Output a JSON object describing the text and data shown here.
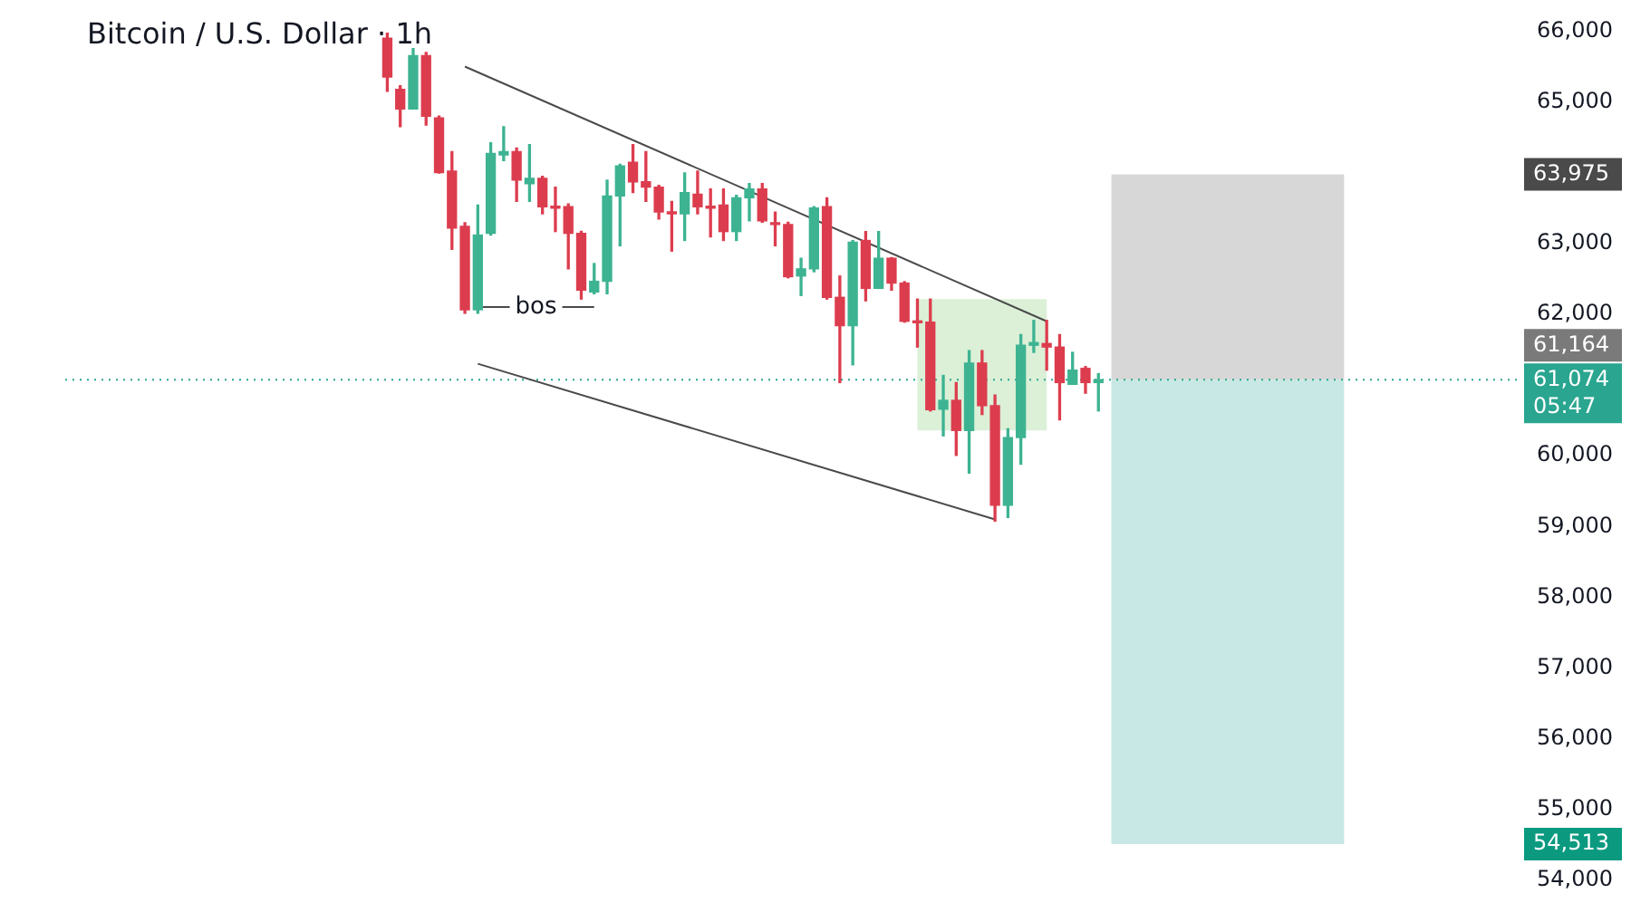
{
  "chart_data": {
    "type": "candlestick",
    "title": "Bitcoin / U.S. Dollar · 1h",
    "categories": [
      null,
      null,
      null,
      null,
      null,
      null,
      null,
      null,
      null,
      null,
      null,
      null,
      null,
      null,
      null,
      null,
      null,
      null,
      null,
      null,
      null,
      null,
      null,
      null,
      null,
      null,
      null,
      null,
      null,
      null,
      null,
      null,
      null,
      null,
      null,
      null,
      null,
      null,
      null,
      null,
      null,
      null,
      null,
      null,
      null,
      null,
      null,
      null,
      null,
      null,
      null,
      null,
      null,
      null,
      null,
      null,
      null,
      null,
      null,
      null,
      null,
      null,
      null,
      null,
      null,
      null,
      null,
      null,
      null,
      null,
      null,
      null,
      null,
      null,
      null,
      null,
      null,
      null,
      null,
      null,
      null,
      null,
      null,
      null,
      null,
      null,
      null,
      null,
      null,
      null,
      null,
      null,
      null,
      null,
      null,
      null,
      null,
      null,
      null,
      null,
      null,
      null,
      null,
      null
    ],
    "ohlc": [
      null,
      null,
      null,
      null,
      null,
      null,
      null,
      null,
      null,
      null,
      null,
      null,
      null,
      null,
      null,
      null,
      [
        65900,
        65970,
        65151,
        65352
      ],
      [
        65176,
        65230,
        64649,
        64900
      ],
      [
        64900,
        65753,
        64900,
        65653
      ],
      [
        65653,
        65700,
        64674,
        64799
      ],
      [
        64774,
        64800,
        63996,
        64000
      ],
      [
        64021,
        64297,
        62917,
        63218
      ],
      [
        63243,
        63293,
        62013,
        62063
      ],
      [
        62063,
        63544,
        62013,
        63118
      ],
      [
        63143,
        64423,
        63118,
        64272
      ],
      [
        64250,
        64649,
        64172,
        64297
      ],
      [
        64297,
        64350,
        63595,
        63896
      ],
      [
        63845,
        64398,
        63595,
        63921
      ],
      [
        63921,
        63950,
        63419,
        63519
      ],
      [
        63519,
        63795,
        63168,
        63500
      ],
      [
        63519,
        63560,
        62641,
        63143
      ],
      [
        63143,
        63170,
        62214,
        62339
      ],
      [
        62314,
        62716,
        62289,
        62465
      ],
      [
        62465,
        63896,
        62289,
        63670
      ],
      [
        63670,
        64120,
        62967,
        64096
      ],
      [
        64147,
        64398,
        63720,
        63871
      ],
      [
        63871,
        64297,
        63595,
        63795
      ],
      [
        63795,
        63820,
        63344,
        63444
      ],
      [
        63444,
        63595,
        62892,
        63420
      ],
      [
        63419,
        63996,
        63042,
        63720
      ],
      [
        63695,
        64021,
        63419,
        63519
      ],
      [
        63519,
        63770,
        63093,
        63500
      ],
      [
        63544,
        63770,
        63042,
        63168
      ],
      [
        63168,
        63680,
        63042,
        63645
      ],
      [
        63645,
        63845,
        63318,
        63770
      ],
      [
        63770,
        63845,
        63300,
        63318
      ],
      [
        63293,
        63444,
        62967,
        63268
      ],
      [
        63268,
        63300,
        62515,
        62530
      ],
      [
        62540,
        62791,
        62264,
        62641
      ],
      [
        62641,
        63519,
        62600,
        63500
      ],
      [
        63519,
        63645,
        62214,
        62239
      ],
      [
        62239,
        62540,
        61034,
        61838
      ],
      [
        61838,
        63042,
        61285,
        63017
      ],
      [
        63042,
        63168,
        62189,
        62365
      ],
      [
        62365,
        63168,
        62365,
        62791
      ],
      [
        62791,
        62800,
        62339,
        62440
      ],
      [
        62440,
        62460,
        61888,
        61900
      ],
      [
        61888,
        62214,
        61536,
        61880
      ],
      [
        61888,
        62214,
        60633,
        60650
      ],
      [
        60658,
        61135,
        60281,
        60783
      ],
      [
        60783,
        61034,
        60005,
        60357
      ],
      [
        60357,
        61486,
        59754,
        61310
      ],
      [
        61310,
        61486,
        60583,
        60708
      ],
      [
        60708,
        60858,
        59076,
        59302
      ],
      [
        59302,
        60381,
        59127,
        60256
      ],
      [
        60256,
        61712,
        59880,
        61561
      ],
      [
        61561,
        61913,
        61461,
        61600
      ],
      [
        61586,
        61913,
        61210,
        61536
      ],
      [
        61536,
        61712,
        60507,
        61034
      ],
      [
        61009,
        61461,
        61009,
        61210
      ],
      [
        61235,
        61260,
        60884,
        61034
      ],
      [
        61034,
        61160,
        60633,
        61074
      ],
      null,
      null,
      null,
      null,
      null,
      null,
      null,
      null,
      null,
      null,
      null,
      null,
      null,
      null,
      null,
      null,
      null,
      null,
      null,
      null,
      null,
      null,
      null,
      null,
      null,
      null,
      null,
      null,
      null,
      null,
      null,
      null
    ],
    "colors": [
      null,
      null,
      null,
      null,
      null,
      null,
      null,
      null,
      null,
      null,
      null,
      null,
      null,
      null,
      null,
      null,
      "#dc3d4e",
      "#dc3d4e",
      "#3db392",
      "#dc3d4e",
      "#dc3d4e",
      "#dc3d4e",
      "#dc3d4e",
      "#3db392",
      "#3db392",
      "#3db392",
      "#dc3d4e",
      "#3db392",
      "#dc3d4e",
      "#dc3d4e",
      "#dc3d4e",
      "#dc3d4e",
      "#3db392",
      "#3db392",
      "#3db392",
      "#dc3d4e",
      "#dc3d4e",
      "#dc3d4e",
      "#dc3d4e",
      "#3db392",
      "#dc3d4e",
      "#dc3d4e",
      "#dc3d4e",
      "#3db392",
      "#3db392",
      "#dc3d4e",
      "#dc3d4e",
      "#dc3d4e",
      "#3db392",
      "#3db392",
      "#dc3d4e",
      "#dc3d4e",
      "#3db392",
      "#dc3d4e",
      "#3db392",
      "#dc3d4e",
      "#dc3d4e",
      "#dc3d4e",
      "#dc3d4e",
      "#3db392",
      "#dc3d4e",
      "#3db392",
      "#dc3d4e",
      "#dc3d4e",
      "#3db392",
      "#3db392",
      "#3db392",
      "#dc3d4e",
      "#dc3d4e",
      "#3db392",
      "#dc3d4e",
      "#3db392",
      null,
      null,
      null,
      null,
      null,
      null,
      null,
      null,
      null,
      null,
      null,
      null,
      null,
      null,
      null,
      null,
      null,
      null,
      null,
      null,
      null,
      null,
      null,
      null,
      null,
      null,
      null,
      null,
      null,
      null,
      null,
      null
    ],
    "series": [
      {
        "type": "line",
        "color": "#4a4a4a",
        "values": [
          null,
          null,
          null,
          null,
          null,
          null,
          null,
          null,
          null,
          null,
          null,
          null,
          null,
          null,
          null,
          null,
          null,
          null,
          null,
          null,
          null,
          null,
          65500,
          null,
          null,
          null,
          null,
          null,
          null,
          null,
          null,
          null,
          null,
          null,
          null,
          null,
          null,
          null,
          null,
          null,
          null,
          null,
          null,
          null,
          null,
          null,
          null,
          null,
          null,
          null,
          null,
          null,
          null,
          null,
          null,
          null,
          null,
          null,
          null,
          null,
          null,
          null,
          null,
          null,
          null,
          null,
          null,
          61900,
          null,
          null,
          null,
          null,
          null,
          null,
          null,
          null,
          null,
          null,
          null,
          null,
          null,
          null,
          null,
          null,
          null,
          null,
          null,
          null,
          null,
          null,
          null,
          null,
          null,
          null,
          null,
          null,
          null,
          null,
          null,
          null,
          null,
          null,
          null,
          null
        ]
      },
      {
        "type": "line",
        "color": "#4a4a4a",
        "values": [
          null,
          null,
          null,
          null,
          null,
          null,
          null,
          null,
          null,
          null,
          null,
          null,
          null,
          null,
          null,
          null,
          null,
          null,
          null,
          null,
          null,
          null,
          null,
          61300,
          null,
          null,
          null,
          null,
          null,
          null,
          null,
          null,
          null,
          null,
          null,
          null,
          null,
          null,
          null,
          null,
          null,
          null,
          null,
          null,
          null,
          null,
          null,
          null,
          null,
          null,
          null,
          null,
          null,
          null,
          null,
          null,
          null,
          null,
          null,
          null,
          null,
          null,
          null,
          59100,
          null,
          null,
          null,
          null,
          null,
          null,
          null,
          null,
          null,
          null,
          null,
          null,
          null,
          null,
          null,
          null,
          null,
          null,
          null,
          null,
          null,
          null,
          null,
          null,
          null,
          null,
          null,
          null,
          null,
          null,
          null,
          null,
          null,
          null,
          null,
          null,
          null,
          null,
          null,
          null
        ]
      },
      {
        "type": "line",
        "name": "bos",
        "color": "#4a4a4a",
        "values": [
          null,
          null,
          null,
          null,
          null,
          null,
          null,
          null,
          null,
          null,
          null,
          null,
          null,
          null,
          null,
          null,
          null,
          null,
          null,
          null,
          null,
          null,
          null,
          62100,
          null,
          null,
          null,
          null,
          null,
          null,
          null,
          null,
          62100,
          null,
          null,
          null,
          null,
          null,
          null,
          null,
          null,
          null,
          null,
          null,
          null,
          null,
          null,
          null,
          null,
          null,
          null,
          null,
          null,
          null,
          null,
          null,
          null,
          null,
          null,
          null,
          null,
          null,
          null,
          null,
          null,
          null,
          null,
          null,
          null,
          null,
          null,
          null,
          null,
          null,
          null,
          null,
          null,
          null,
          null,
          null,
          null,
          null,
          null,
          null,
          null,
          null,
          null,
          null,
          null,
          null,
          null,
          null,
          null,
          null,
          null,
          null,
          null,
          null,
          null,
          null,
          null,
          null,
          null,
          null
        ]
      }
    ],
    "ylim": [
      54000,
      66000
    ],
    "yticks": [
      {
        "value": 54000,
        "label": "54,000"
      },
      {
        "value": 55000,
        "label": "55,000"
      },
      {
        "value": 56000,
        "label": "56,000"
      },
      {
        "value": 57000,
        "label": "57,000"
      },
      {
        "value": 58000,
        "label": "58,000"
      },
      {
        "value": 59000,
        "label": "59,000"
      },
      {
        "value": 60000,
        "label": "60,000"
      },
      {
        "value": 62000,
        "label": "62,000"
      },
      {
        "value": 63000,
        "label": "63,000"
      },
      {
        "value": 65000,
        "label": "65,000"
      },
      {
        "value": 66000,
        "label": "66,000"
      }
    ],
    "tick_labels": "y",
    "bands": [
      {
        "axis": "y",
        "from": 60357,
        "to": 62214,
        "color": "#d5edd0"
      },
      {
        "axis": "y",
        "from": 61074,
        "to": 63975,
        "color": "#d0d0d0"
      },
      {
        "axis": "y",
        "from": 54513,
        "to": 61074,
        "color": "#bde4df"
      }
    ],
    "ref_lines": [
      {
        "axis": "y",
        "value": 61074,
        "label": "61,074",
        "color": "#2aa58f",
        "line_style": "dotted"
      }
    ],
    "annotations": [
      "05:47",
      "61,164",
      "63,975",
      "54,513"
    ]
  }
}
